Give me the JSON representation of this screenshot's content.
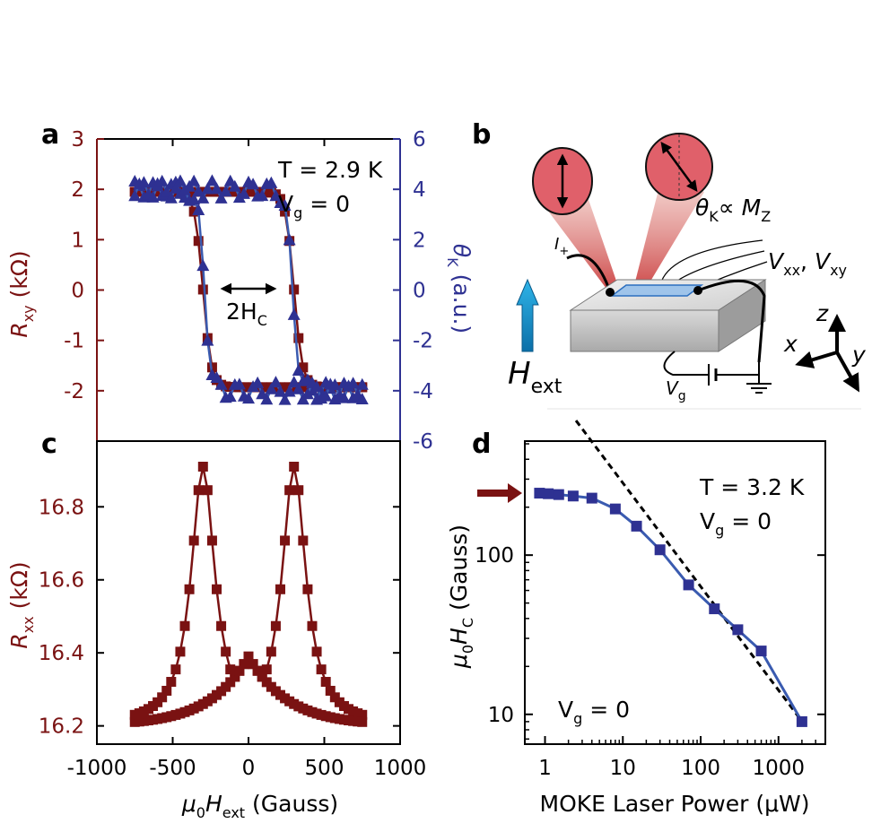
{
  "panels": {
    "a": "a",
    "b": "b",
    "c": "c",
    "d": "d"
  },
  "colors": {
    "red": "#7a1212",
    "blue": "#2e3192",
    "line_blue": "#3a5bb0",
    "black": "#000000"
  },
  "chart_data": [
    {
      "id": "a",
      "type": "line",
      "description_free": true,
      "ylabel_left": {
        "main": "R",
        "sub": "xy",
        "unit": " (kΩ)"
      },
      "ylabel_right": {
        "main": "θ",
        "sub": "K",
        "unit": " (a.u.)"
      },
      "annotation_temp": "T = 2.9 K",
      "annotation_gate": {
        "main": "V",
        "sub": "g",
        "rest": " = 0"
      },
      "annotation_width": {
        "main": "2H",
        "sub": "C"
      },
      "xlim": [
        -1000,
        1000
      ],
      "ylim_left": [
        -3,
        3
      ],
      "ylim_right": [
        -6,
        6
      ],
      "yticks_left": [
        "-2",
        "-1",
        "0",
        "1",
        "2",
        "3"
      ],
      "yticks_right": [
        "-6",
        "-4",
        "-2",
        "0",
        "2",
        "4",
        "6"
      ],
      "series": [
        {
          "name": "R_xy",
          "axis": "left",
          "color": "#7a1212",
          "marker": "square",
          "coercive": 300,
          "sat": 1.95,
          "sat2": -1.93,
          "width": 55
        },
        {
          "name": "theta_K",
          "axis": "right",
          "color": "#2e3192",
          "marker": "triangle",
          "coercive": 290,
          "sat": 4.0,
          "sat2": -4.0,
          "width": 45
        }
      ]
    },
    {
      "id": "c",
      "type": "line",
      "ylabel": {
        "main": "R",
        "sub": "xx",
        "unit": " (kΩ)"
      },
      "xlabel": {
        "mu": "μ",
        "mu_sub": "0",
        "main": "H",
        "sub": "ext",
        "unit": " (Gauss)"
      },
      "xlim": [
        -1000,
        1000
      ],
      "ylim": [
        16.15,
        16.98
      ],
      "xticks": [
        "-1000",
        "-500",
        "0",
        "500",
        "1000"
      ],
      "yticks": [
        "16.2",
        "16.4",
        "16.6",
        "16.8"
      ],
      "peak_field": 300,
      "peak_value": 16.91,
      "base_value": 16.2,
      "center_value": 16.39
    },
    {
      "id": "d",
      "type": "line",
      "scale": "log-log",
      "xlabel": "MOKE Laser Power (μW)",
      "ylabel": {
        "mu": "μ",
        "mu_sub": "0",
        "main": "H",
        "sub": "C",
        "unit": " (Gauss)"
      },
      "annotation_temp": "T = 3.2 K",
      "annotation_gate": {
        "main": "V",
        "sub": "g",
        "rest": " = 0"
      },
      "annotation_gate2": {
        "main": "V",
        "sub": "g",
        "rest": " = 0"
      },
      "xticks": [
        "1",
        "10",
        "100",
        "1000"
      ],
      "yticks": [
        "10",
        "100"
      ],
      "x": [
        0.85,
        1.1,
        1.5,
        2.3,
        4,
        8,
        15,
        30,
        70,
        150,
        300,
        600,
        2000
      ],
      "y": [
        245,
        243,
        240,
        235,
        228,
        195,
        152,
        108,
        65,
        46,
        34,
        25,
        9
      ],
      "fit_line": {
        "x": [
          2.5,
          2200
        ],
        "y": [
          700,
          8.5
        ],
        "style": "dashed"
      },
      "arrow_value": 245
    }
  ],
  "schematic": {
    "theta_label": {
      "main": "θ",
      "sub": "K",
      "rest": "∝ M",
      "sub2": "Z"
    },
    "voltage_label": {
      "v1": "V",
      "s1": "xx",
      "comma": ", ",
      "v2": "V",
      "s2": "xy"
    },
    "current_label": {
      "main": "I",
      "sub": "+"
    },
    "field_label": {
      "main": "H",
      "sub": "ext"
    },
    "gate_label": {
      "main": "V",
      "sub": "g"
    },
    "axes": {
      "x": "x",
      "y": "y",
      "z": "z"
    }
  }
}
